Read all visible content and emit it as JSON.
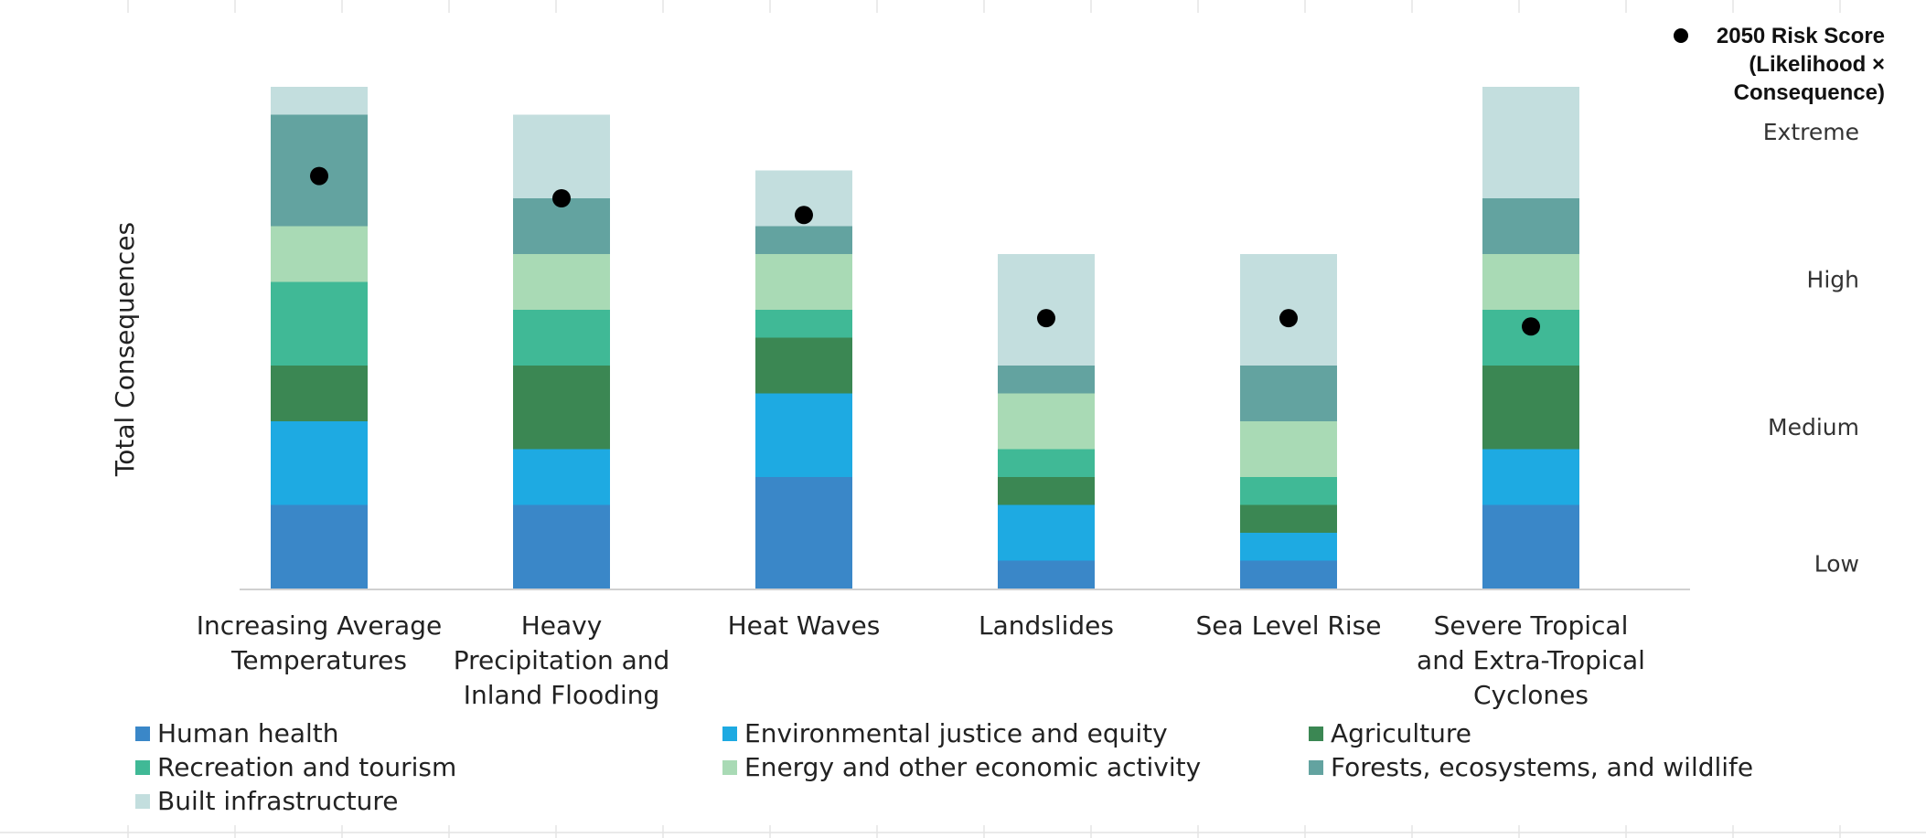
{
  "chart_data": {
    "type": "bar",
    "stacked": true,
    "ylabel": "Total Consequences",
    "categories": [
      [
        "Increasing Average",
        "Temperatures"
      ],
      [
        "Heavy",
        "Precipitation and",
        "Inland Flooding"
      ],
      [
        "Heat Waves"
      ],
      [
        "Landslides"
      ],
      [
        "Sea Level Rise"
      ],
      [
        "Severe Tropical",
        "and Extra-Tropical",
        "Cyclones"
      ]
    ],
    "ylim": [
      0,
      18
    ],
    "series": [
      {
        "name": "Human health",
        "color": "#3a87c8",
        "values": [
          3,
          3,
          4,
          1,
          1,
          3
        ]
      },
      {
        "name": "Environmental justice and equity",
        "color": "#1eaae2",
        "values": [
          3,
          2,
          3,
          2,
          1,
          2
        ]
      },
      {
        "name": "Agriculture",
        "color": "#3b8753",
        "values": [
          2,
          3,
          2,
          1,
          1,
          3
        ]
      },
      {
        "name": "Recreation and tourism",
        "color": "#40b996",
        "values": [
          3,
          2,
          1,
          1,
          1,
          2
        ]
      },
      {
        "name": "Energy and other economic activity",
        "color": "#a9dab5",
        "values": [
          2,
          2,
          2,
          2,
          2,
          2
        ]
      },
      {
        "name": "Forests, ecosystems, and wildlife",
        "color": "#63a3a0",
        "values": [
          4,
          2,
          1,
          1,
          2,
          2
        ]
      },
      {
        "name": "Built infrastructure",
        "color": "#c3dede",
        "values": [
          1,
          3,
          2,
          4,
          4,
          4
        ]
      }
    ],
    "risk_score": {
      "legend_lines": [
        "2050 Risk Score",
        "(Likelihood ×",
        "Consequence)"
      ],
      "color": "#000000",
      "values": [
        14.8,
        14.0,
        13.4,
        9.7,
        9.7,
        9.4
      ]
    },
    "risk_levels": [
      {
        "label": "Low",
        "value": 0.9
      },
      {
        "label": "Medium",
        "value": 5.8
      },
      {
        "label": "High",
        "value": 11.1
      },
      {
        "label": "Extreme",
        "value": 16.4
      }
    ],
    "legend_position": "bottom"
  }
}
